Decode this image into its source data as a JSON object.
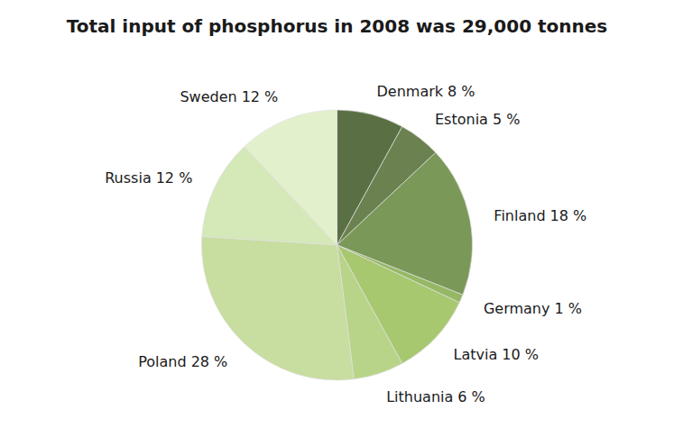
{
  "chart_data": {
    "type": "pie",
    "title": "Total input of phosphorus in 2008 was 29,000 tonnes",
    "categories": [
      "Denmark",
      "Estonia",
      "Finland",
      "Germany",
      "Latvia",
      "Lithuania",
      "Poland",
      "Russia",
      "Sweden"
    ],
    "values": [
      8,
      5,
      18,
      1,
      10,
      6,
      28,
      12,
      12
    ],
    "value_labels": [
      "8 %",
      "5 %",
      "18 %",
      "1 %",
      "10 %",
      "6 %",
      "28 %",
      "12 %",
      "12 %"
    ],
    "colors": [
      "#5a7044",
      "#6b8250",
      "#7a9858",
      "#96b865",
      "#a8c870",
      "#b8d488",
      "#c8dda0",
      "#d5e8b8",
      "#e2f0cc"
    ],
    "data_labels": true
  }
}
